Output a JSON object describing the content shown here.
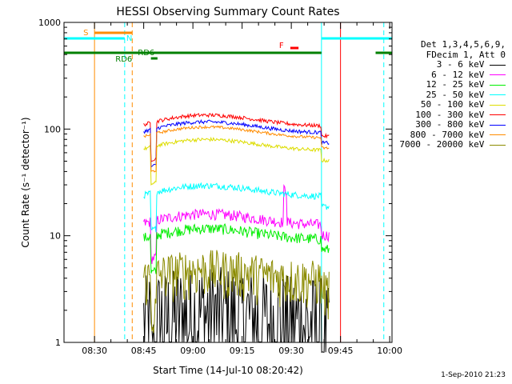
{
  "chart_data": {
    "type": "line",
    "title": "HESSI Observing Summary Count Rates",
    "xlabel": "Start Time (14-Jul-10 08:20:42)",
    "ylabel": "Count Rate (s⁻¹ detector⁻¹)",
    "yscale": "log",
    "ylim": [
      1,
      1000
    ],
    "xlim_minutes": [
      0,
      100
    ],
    "x_tick_labels": [
      "08:30",
      "08:45",
      "09:00",
      "09:15",
      "09:30",
      "09:45",
      "10:00"
    ],
    "x_tick_minutes": [
      9.3,
      24.3,
      39.3,
      54.3,
      69.3,
      84.3,
      99.3
    ],
    "y_tick_labels": [
      "1",
      "10",
      "100",
      "1000"
    ],
    "y_tick_values": [
      1,
      10,
      100,
      1000
    ],
    "legend_header": [
      "Det 1,3,4,5,6,9,",
      "FDecim 1, Att 0"
    ],
    "series": [
      {
        "name": "3 - 6 keV",
        "color": "#000000"
      },
      {
        "name": "6 - 12 keV",
        "color": "#ff00ff"
      },
      {
        "name": "12 - 25 keV",
        "color": "#00ee00"
      },
      {
        "name": "25 - 50 keV",
        "color": "#00ffff"
      },
      {
        "name": "50 - 100 keV",
        "color": "#dddd00"
      },
      {
        "name": "100 - 300 keV",
        "color": "#ff0000"
      },
      {
        "name": "300 - 800 keV",
        "color": "#0000ff"
      },
      {
        "name": "800 - 7000 keV",
        "color": "#ff8c00"
      },
      {
        "name": "7000 - 20000 keV",
        "color": "#8b8b00"
      }
    ],
    "annotations": {
      "s_label": "S",
      "n_label": "N",
      "rd6_label": "RD6",
      "f_label": "F"
    }
  },
  "timestamp": "1-Sep-2010 21:23"
}
